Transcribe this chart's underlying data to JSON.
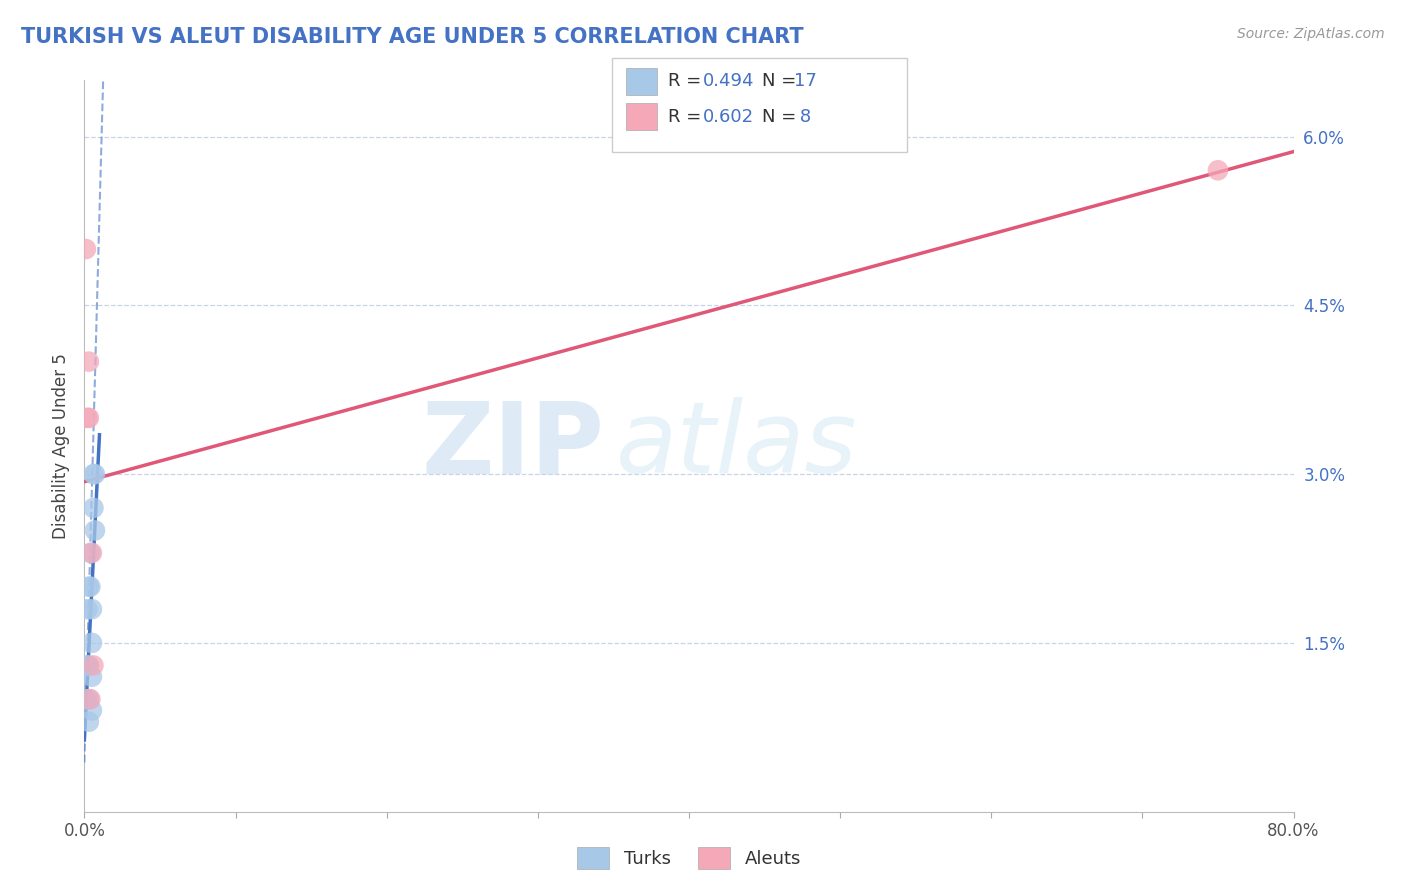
{
  "title": "TURKISH VS ALEUT DISABILITY AGE UNDER 5 CORRELATION CHART",
  "source_text": "Source: ZipAtlas.com",
  "ylabel": "Disability Age Under 5",
  "xlim": [
    0.0,
    0.8
  ],
  "ylim": [
    0.0,
    0.065
  ],
  "xticks": [
    0.0,
    0.1,
    0.2,
    0.3,
    0.4,
    0.5,
    0.6,
    0.7,
    0.8
  ],
  "xticklabels_ends": [
    "0.0%",
    "80.0%"
  ],
  "yticks": [
    0.015,
    0.03,
    0.045,
    0.06
  ],
  "yticklabels": [
    "1.5%",
    "3.0%",
    "4.5%",
    "6.0%"
  ],
  "turks_x": [
    0.001,
    0.002,
    0.002,
    0.003,
    0.003,
    0.003,
    0.003,
    0.004,
    0.004,
    0.005,
    0.005,
    0.005,
    0.005,
    0.006,
    0.006,
    0.007,
    0.007
  ],
  "turks_y": [
    0.01,
    0.013,
    0.018,
    0.008,
    0.01,
    0.013,
    0.02,
    0.02,
    0.023,
    0.009,
    0.012,
    0.015,
    0.018,
    0.027,
    0.03,
    0.025,
    0.03
  ],
  "aleuts_x": [
    0.001,
    0.002,
    0.003,
    0.003,
    0.004,
    0.005,
    0.006,
    0.75
  ],
  "aleuts_y": [
    0.05,
    0.035,
    0.035,
    0.04,
    0.01,
    0.023,
    0.013,
    0.057
  ],
  "turks_color": "#a8c8e8",
  "aleuts_color": "#f4a8b8",
  "turks_R": 0.494,
  "turks_N": 17,
  "aleuts_R": 0.602,
  "aleuts_N": 8,
  "turks_line_color": "#4472c4",
  "aleuts_line_color": "#e05878",
  "watermark_zip": "ZIP",
  "watermark_atlas": "atlas",
  "title_color": "#4472c4",
  "background_color": "#ffffff",
  "grid_color": "#c8d4e8",
  "ytick_color": "#4472c4",
  "xtick_color": "#555555"
}
